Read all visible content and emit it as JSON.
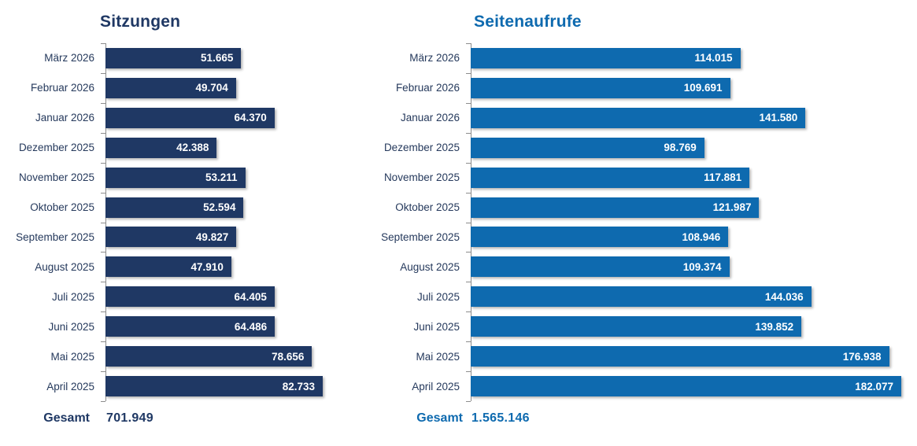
{
  "page": {
    "background": "#ffffff",
    "label_color": "#25395c",
    "axis_color": "#8c8c8c",
    "bar_value_text_color": "#ffffff"
  },
  "chart_data": [
    {
      "type": "bar",
      "orientation": "horizontal",
      "title": "Sitzungen",
      "accent_color": "#1f3864",
      "legend_position": "none",
      "grid": false,
      "categories": [
        "März 2026",
        "Februar 2026",
        "Januar 2026",
        "Dezember 2025",
        "November 2025",
        "Oktober 2025",
        "September 2025",
        "August 2025",
        "Juli 2025",
        "Juni 2025",
        "Mai 2025",
        "April 2025"
      ],
      "values": [
        51665,
        49704,
        64370,
        42388,
        53211,
        52594,
        49827,
        47910,
        64405,
        64486,
        78656,
        82733
      ],
      "value_labels": [
        "51.665",
        "49.704",
        "64.370",
        "42.388",
        "53.211",
        "52.594",
        "49.827",
        "47.910",
        "64.405",
        "64.486",
        "78.656",
        "82.733"
      ],
      "xlim": [
        0,
        82733
      ],
      "total": {
        "label": "Gesamt",
        "value": "701.949"
      }
    },
    {
      "type": "bar",
      "orientation": "horizontal",
      "title": "Seitenaufrufe",
      "accent_color": "#0e6aaf",
      "legend_position": "none",
      "grid": false,
      "categories": [
        "März 2026",
        "Februar 2026",
        "Januar 2026",
        "Dezember 2025",
        "November 2025",
        "Oktober 2025",
        "September 2025",
        "August 2025",
        "Juli 2025",
        "Juni 2025",
        "Mai 2025",
        "April 2025"
      ],
      "values": [
        114015,
        109691,
        141580,
        98769,
        117881,
        121987,
        108946,
        109374,
        144036,
        139852,
        176938,
        182077
      ],
      "value_labels": [
        "114.015",
        "109.691",
        "141.580",
        "98.769",
        "117.881",
        "121.987",
        "108.946",
        "109.374",
        "144.036",
        "139.852",
        "176.938",
        "182.077"
      ],
      "xlim": [
        0,
        182077
      ],
      "total": {
        "label": "Gesamt",
        "value": "1.565.146"
      }
    }
  ]
}
